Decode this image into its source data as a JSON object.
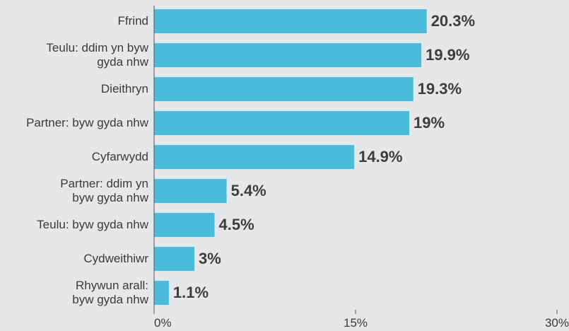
{
  "chart_data": {
    "type": "bar",
    "orientation": "horizontal",
    "categories": [
      "Ffrind",
      "Teulu: ddim yn byw\ngyda nhw",
      "Dieithryn",
      "Partner: byw gyda nhw",
      "Cyfarwydd",
      "Partner: ddim yn\nbyw gyda nhw",
      "Teulu: byw gyda nhw",
      "Cydweithiwr",
      "Rhywun arall:\nbyw gyda nhw"
    ],
    "values": [
      20.3,
      19.9,
      19.3,
      19,
      14.9,
      5.4,
      4.5,
      3,
      1.1
    ],
    "value_labels": [
      "20.3%",
      "19.9%",
      "19.3%",
      "19%",
      "14.9%",
      "5.4%",
      "4.5%",
      "3%",
      "1.1%"
    ],
    "color": "#4bbbdb",
    "xlim": [
      0,
      30
    ],
    "xticks": [
      {
        "value": 0,
        "label": "0%"
      },
      {
        "value": 15,
        "label": "15%"
      },
      {
        "value": 30,
        "label": "30%"
      }
    ],
    "grid": false
  }
}
